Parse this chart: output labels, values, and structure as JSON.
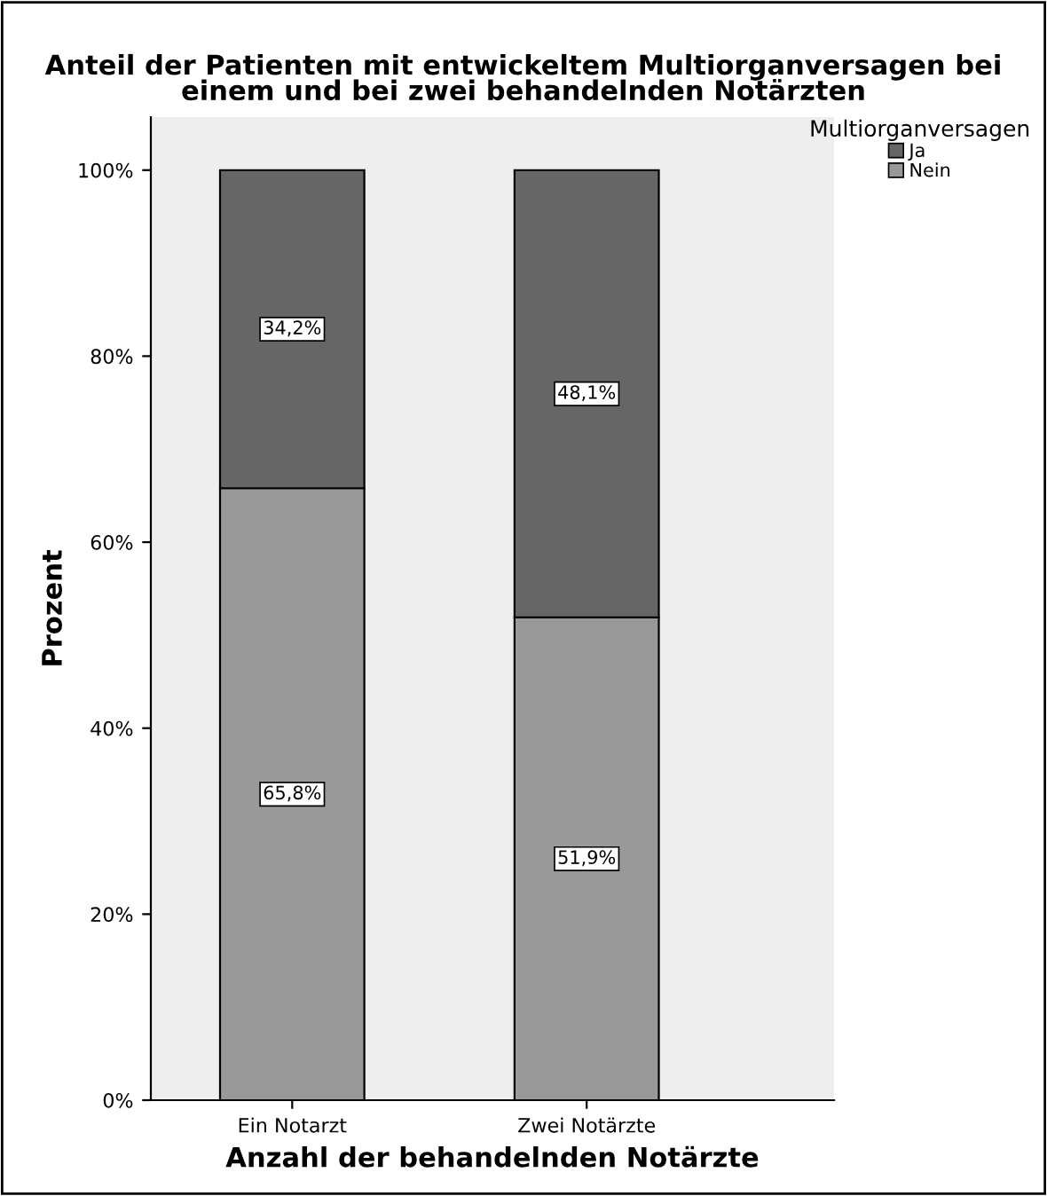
{
  "chart_data": {
    "type": "bar",
    "stacked": true,
    "title": "Anteil der Patienten mit entwickeltem Multiorganversagen bei\neinem und bei zwei behandelnden Notärzten",
    "xlabel": "Anzahl der behandelnden Notärzte",
    "ylabel": "Prozent",
    "legend_title": "Multiorganversagen",
    "legend": "top right",
    "categories": [
      "Ein Notarzt",
      "Zwei Notärzte"
    ],
    "series": [
      {
        "name": "Nein",
        "color": "#999999",
        "values": [
          65.8,
          51.9
        ],
        "value_labels": [
          "65,8%",
          "51,9%"
        ]
      },
      {
        "name": "Ja",
        "color": "#666666",
        "values": [
          34.2,
          48.1
        ],
        "value_labels": [
          "34,2%",
          "48,1%"
        ]
      }
    ],
    "ylim": [
      0,
      105.7
    ],
    "yticks": [
      {
        "value": 0,
        "label": "0%"
      },
      {
        "value": 20,
        "label": "20%"
      },
      {
        "value": 40,
        "label": "40%"
      },
      {
        "value": 60,
        "label": "60%"
      },
      {
        "value": 80,
        "label": "80%"
      },
      {
        "value": 100,
        "label": "100%"
      }
    ],
    "grid": false
  }
}
